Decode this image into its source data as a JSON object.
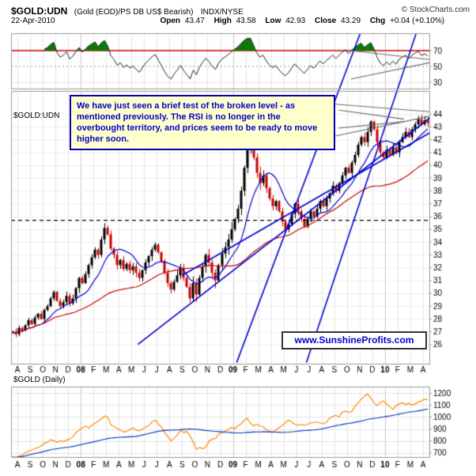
{
  "header": {
    "symbol": "$GOLD:UDN",
    "description": "(Gold (EOD)/PS DB US$ Bearish)",
    "exchange": "INDX/NYSE",
    "copyright": "© StockCharts.com",
    "date": "22-Apr-2010",
    "quote": {
      "open_label": "Open",
      "open": "43.47",
      "high_label": "High",
      "high": "43.58",
      "low_label": "Low",
      "low": "42.93",
      "close_label": "Close",
      "close": "43.29",
      "chg_label": "Chg",
      "chg": "+0.04 (+0.10%)"
    }
  },
  "panels": {
    "main_label": "$GOLD:UDN",
    "bottom_label": "$GOLD (Daily)"
  },
  "annotation": {
    "text": "We have just seen a brief test of the broken level - as mentioned previously. The RSI is no longer in the overbought territory, and prices seem to be ready to move higher soon."
  },
  "watermark": "www.SunshineProfits.com",
  "colors": {
    "candle_up": "#000000",
    "candle_down": "#cc0000",
    "ma_short": "#0000cc",
    "ma_long": "#cc0000",
    "trend_blue": "#0000cc",
    "gray_line": "#666666",
    "gold_line": "#ff8800",
    "gold_ma": "#0033bb",
    "signal_red": "#cc0000",
    "rsi_line": "#222222",
    "overbought_fill": "#0b7a0b",
    "annotation_bg": "#ffffcc",
    "annotation_blue": "#0000cc"
  },
  "chart_data": [
    {
      "name": "rsi-panel",
      "type": "line",
      "ylim": [
        22,
        92
      ],
      "y_ticks": [
        70,
        50,
        30
      ],
      "overbought": 70,
      "midline": 50,
      "oversold": 30,
      "period": 10,
      "gray_lines": [
        [
          26.3,
          34,
          32.9,
          56
        ],
        [
          26.3,
          70,
          32.9,
          58
        ]
      ]
    },
    {
      "name": "gold-udn-ratio",
      "type": "candlestick",
      "title": "$GOLD:UDN",
      "x_labels": [
        "A",
        "S",
        "O",
        "N",
        "D",
        "08",
        "F",
        "M",
        "A",
        "M",
        "J",
        "J",
        "A",
        "S",
        "O",
        "N",
        "D",
        "09",
        "F",
        "M",
        "A",
        "M",
        "J",
        "J",
        "A",
        "S",
        "O",
        "N",
        "D",
        "10",
        "F",
        "M",
        "A"
      ],
      "values": [
        27.0,
        26.8,
        27.3,
        27.1,
        27.5,
        27.9,
        27.6,
        28.1,
        28.4,
        28.0,
        28.7,
        29.0,
        29.6,
        30.1,
        29.4,
        29.0,
        29.3,
        29.8,
        29.2,
        29.6,
        30.4,
        31.2,
        30.8,
        31.5,
        32.2,
        32.8,
        33.4,
        33.0,
        34.2,
        35.1,
        34.6,
        33.5,
        33.0,
        32.2,
        32.6,
        31.9,
        32.3,
        31.8,
        32.1,
        31.6,
        31.2,
        31.8,
        32.4,
        32.9,
        33.4,
        33.8,
        33.2,
        32.5,
        31.6,
        30.8,
        30.3,
        30.9,
        31.4,
        32.0,
        31.2,
        30.5,
        29.6,
        30.8,
        29.9,
        31.2,
        32.1,
        33.0,
        32.4,
        31.6,
        31.0,
        32.2,
        33.1,
        33.6,
        34.2,
        35.0,
        35.8,
        36.6,
        38.0,
        39.8,
        41.2,
        41.5,
        40.6,
        39.4,
        38.6,
        39.2,
        38.2,
        37.4,
        36.8,
        37.2,
        36.4,
        35.6,
        35.0,
        35.4,
        36.2,
        37.0,
        36.4,
        35.8,
        35.2,
        35.8,
        36.4,
        36.0,
        36.6,
        37.2,
        36.8,
        37.4,
        37.8,
        38.4,
        38.0,
        38.6,
        39.2,
        39.8,
        39.4,
        40.2,
        40.8,
        41.6,
        42.2,
        41.8,
        42.6,
        43.4,
        42.8,
        41.8,
        41.0,
        40.6,
        41.2,
        40.8,
        41.4,
        41.0,
        41.8,
        42.2,
        42.6,
        42.2,
        42.8,
        43.2,
        43.6,
        43.2,
        43.5,
        43.29
      ],
      "ylim": [
        24.5,
        45.8
      ],
      "y_ticks": [
        44,
        43,
        42,
        41,
        40,
        39,
        38,
        37,
        36,
        35,
        34,
        33,
        32,
        31,
        30,
        29,
        28,
        27,
        26
      ],
      "ma_short_period": 10,
      "ma_long_period": 40,
      "dashed_level": 35.7,
      "trendlines_blue": [
        [
          9.5,
          26.0,
          33.2,
          44.2
        ],
        [
          13.0,
          31.4,
          33.0,
          42.8
        ],
        [
          17.3,
          24.6,
          27.5,
          51.5
        ],
        [
          22.8,
          24.6,
          32.0,
          51.9
        ]
      ],
      "gray_lines": [
        [
          24.7,
          44.8,
          32.9,
          44.15
        ],
        [
          24.7,
          42.2,
          32.9,
          43.9
        ],
        [
          25.35,
          44.3,
          30.5,
          43.6
        ],
        [
          25.35,
          42.9,
          30.5,
          43.4
        ]
      ]
    },
    {
      "name": "gold-daily",
      "type": "line",
      "title": "$GOLD (Daily)",
      "values": [
        665,
        660,
        672,
        680,
        700,
        715,
        725,
        735,
        745,
        760,
        780,
        790,
        810,
        800,
        790,
        800,
        795,
        805,
        815,
        835,
        870,
        890,
        910,
        925,
        910,
        930,
        950,
        965,
        985,
        1010,
        1000,
        935,
        920,
        905,
        890,
        875,
        880,
        895,
        910,
        890,
        885,
        900,
        915,
        930,
        960,
        975,
        940,
        915,
        870,
        835,
        800,
        825,
        850,
        890,
        870,
        880,
        840,
        790,
        730,
        745,
        735,
        750,
        800,
        815,
        820,
        855,
        870,
        880,
        895,
        915,
        900,
        925,
        940,
        970,
        990,
        950,
        925,
        940,
        925,
        920,
        895,
        880,
        870,
        890,
        910,
        930,
        950,
        975,
        960,
        940,
        930,
        940,
        930,
        940,
        950,
        955,
        960,
        950,
        945,
        955,
        990,
        1005,
        1015,
        1000,
        1040,
        1050,
        1040,
        1045,
        1090,
        1120,
        1150,
        1175,
        1195,
        1160,
        1120,
        1095,
        1120,
        1135,
        1110,
        1085,
        1065,
        1095,
        1110,
        1120,
        1105,
        1115,
        1100,
        1110,
        1125,
        1135,
        1150,
        1145
      ],
      "ylim": [
        665,
        1255
      ],
      "y_ticks": [
        1200,
        1100,
        1000,
        900,
        800,
        700
      ],
      "ma_period": 40
    }
  ]
}
